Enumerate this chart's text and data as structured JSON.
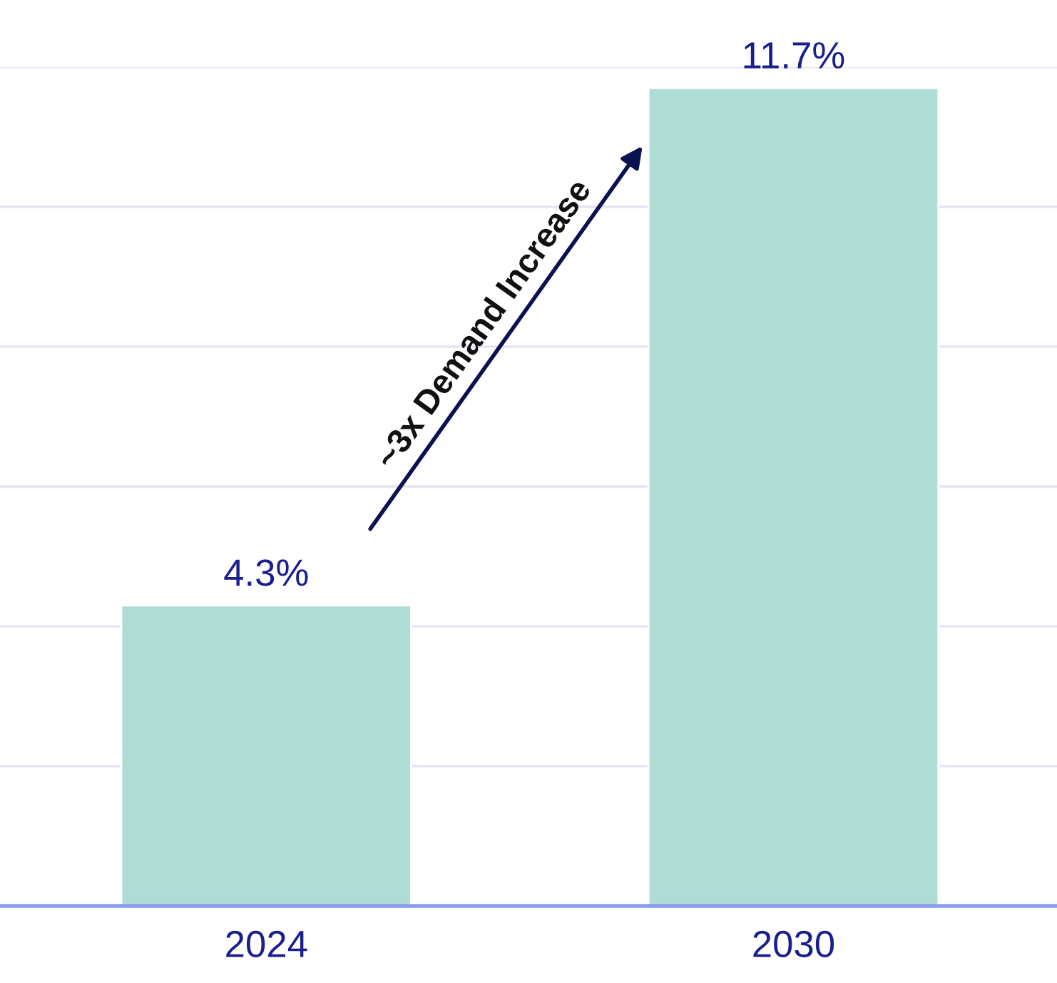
{
  "chart_data": {
    "type": "bar",
    "categories": [
      "2024",
      "2030"
    ],
    "values": [
      4.3,
      11.7
    ],
    "value_labels": [
      "4.3%",
      "11.7%"
    ],
    "color": "#b0dcd6",
    "ylim": [
      0,
      12
    ],
    "yticks": [
      {
        "value": 0,
        "label": null
      },
      {
        "value": 2,
        "label": null
      },
      {
        "value": 4,
        "label": null
      },
      {
        "value": 6,
        "label": null
      },
      {
        "value": 8,
        "label": null
      },
      {
        "value": 10,
        "label": null
      },
      {
        "value": 12,
        "label": null
      }
    ],
    "grid": "y",
    "tick_labels": "x",
    "annotations": [
      "~3x Demand Increase"
    ]
  }
}
